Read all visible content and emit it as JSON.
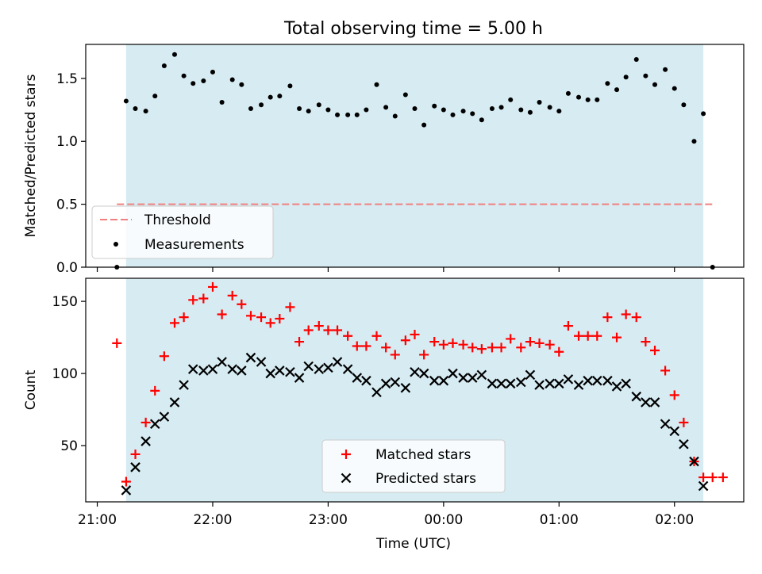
{
  "figure": {
    "title": "Total observing time = 5.00 h",
    "xlabel": "Time (UTC)"
  },
  "colors": {
    "shade": "#add8e6",
    "threshold": "#f08080",
    "measurement": "#000000",
    "matched": "#ff0000",
    "predicted": "#000000"
  },
  "chart_data": [
    {
      "type": "scatter",
      "name": "ratio-panel",
      "ylabel": "Matched/Predicted stars",
      "xlim": [
        -0.1,
        5.6
      ],
      "ylim": [
        0.0,
        1.77
      ],
      "yticks": [
        0.0,
        0.5,
        1.0,
        1.5
      ],
      "ytick_labels": [
        "0.0",
        "0.5",
        "1.0",
        "1.5"
      ],
      "shaded_span": [
        0.25,
        5.25
      ],
      "legend": {
        "placement": "lower-left",
        "entries": [
          "Threshold",
          "Measurements"
        ]
      },
      "threshold": {
        "name": "Threshold",
        "y": 0.5,
        "x": [
          0.17,
          5.33
        ]
      },
      "series": [
        {
          "name": "Measurements",
          "x": [
            0.17,
            0.25,
            0.33,
            0.42,
            0.5,
            0.58,
            0.67,
            0.75,
            0.83,
            0.92,
            1.0,
            1.08,
            1.17,
            1.25,
            1.33,
            1.42,
            1.5,
            1.58,
            1.67,
            1.75,
            1.83,
            1.92,
            2.0,
            2.08,
            2.17,
            2.25,
            2.33,
            2.42,
            2.5,
            2.58,
            2.67,
            2.75,
            2.83,
            2.92,
            3.0,
            3.08,
            3.17,
            3.25,
            3.33,
            3.42,
            3.5,
            3.58,
            3.67,
            3.75,
            3.83,
            3.92,
            4.0,
            4.08,
            4.17,
            4.25,
            4.33,
            4.42,
            4.5,
            4.58,
            4.67,
            4.75,
            4.83,
            4.92,
            5.0,
            5.08,
            5.17,
            5.25,
            5.33
          ],
          "y": [
            0.0,
            1.32,
            1.26,
            1.24,
            1.36,
            1.6,
            1.69,
            1.52,
            1.46,
            1.48,
            1.55,
            1.31,
            1.49,
            1.45,
            1.26,
            1.29,
            1.35,
            1.36,
            1.44,
            1.26,
            1.24,
            1.29,
            1.25,
            1.21,
            1.21,
            1.21,
            1.25,
            1.45,
            1.27,
            1.2,
            1.37,
            1.26,
            1.13,
            1.28,
            1.25,
            1.21,
            1.24,
            1.22,
            1.17,
            1.26,
            1.27,
            1.33,
            1.25,
            1.23,
            1.31,
            1.27,
            1.24,
            1.38,
            1.35,
            1.33,
            1.33,
            1.46,
            1.41,
            1.51,
            1.65,
            1.52,
            1.45,
            1.57,
            1.42,
            1.29,
            1.0,
            1.22,
            0.0
          ]
        }
      ]
    },
    {
      "type": "scatter",
      "name": "count-panel",
      "ylabel": "Count",
      "xlim": [
        -0.1,
        5.6
      ],
      "ylim": [
        11,
        166
      ],
      "yticks": [
        50,
        100,
        150
      ],
      "ytick_labels": [
        "50",
        "100",
        "150"
      ],
      "xticks": [
        0,
        1,
        2,
        3,
        4,
        5
      ],
      "xtick_labels": [
        "21:00",
        "22:00",
        "23:00",
        "00:00",
        "01:00",
        "02:00"
      ],
      "shaded_span": [
        0.25,
        5.25
      ],
      "legend": {
        "placement": "lower-center",
        "entries": [
          "Matched stars",
          "Predicted stars"
        ]
      },
      "series": [
        {
          "name": "Matched stars",
          "marker": "plus",
          "x": [
            0.17,
            0.25,
            0.33,
            0.42,
            0.5,
            0.58,
            0.67,
            0.75,
            0.83,
            0.92,
            1.0,
            1.08,
            1.17,
            1.25,
            1.33,
            1.42,
            1.5,
            1.58,
            1.67,
            1.75,
            1.83,
            1.92,
            2.0,
            2.08,
            2.17,
            2.25,
            2.33,
            2.42,
            2.5,
            2.58,
            2.67,
            2.75,
            2.83,
            2.92,
            3.0,
            3.08,
            3.17,
            3.25,
            3.33,
            3.42,
            3.5,
            3.58,
            3.67,
            3.75,
            3.83,
            3.92,
            4.0,
            4.08,
            4.17,
            4.25,
            4.33,
            4.42,
            4.5,
            4.58,
            4.67,
            4.75,
            4.83,
            4.92,
            5.0,
            5.08,
            5.17,
            5.25,
            5.33,
            5.42
          ],
          "y": [
            121,
            25,
            44,
            66,
            88,
            112,
            135,
            139,
            151,
            152,
            160,
            141,
            154,
            148,
            140,
            139,
            135,
            138,
            146,
            122,
            130,
            133,
            130,
            130,
            126,
            119,
            119,
            126,
            118,
            113,
            123,
            127,
            113,
            122,
            120,
            121,
            120,
            118,
            117,
            118,
            118,
            124,
            118,
            122,
            121,
            120,
            115,
            133,
            126,
            126,
            126,
            139,
            125,
            141,
            139,
            122,
            116,
            102,
            85,
            66,
            39,
            28,
            28,
            28
          ]
        },
        {
          "name": "Predicted stars",
          "marker": "x",
          "x": [
            0.25,
            0.33,
            0.42,
            0.5,
            0.58,
            0.67,
            0.75,
            0.83,
            0.92,
            1.0,
            1.08,
            1.17,
            1.25,
            1.33,
            1.42,
            1.5,
            1.58,
            1.67,
            1.75,
            1.83,
            1.92,
            2.0,
            2.08,
            2.17,
            2.25,
            2.33,
            2.42,
            2.5,
            2.58,
            2.67,
            2.75,
            2.83,
            2.92,
            3.0,
            3.08,
            3.17,
            3.25,
            3.33,
            3.42,
            3.5,
            3.58,
            3.67,
            3.75,
            3.83,
            3.92,
            4.0,
            4.08,
            4.17,
            4.25,
            4.33,
            4.42,
            4.5,
            4.58,
            4.67,
            4.75,
            4.83,
            4.92,
            5.0,
            5.08,
            5.17,
            5.25
          ],
          "y": [
            19,
            35,
            53,
            65,
            70,
            80,
            92,
            103,
            102,
            103,
            108,
            103,
            102,
            111,
            108,
            100,
            102,
            101,
            97,
            105,
            103,
            104,
            108,
            103,
            97,
            95,
            87,
            93,
            94,
            90,
            101,
            100,
            95,
            95,
            100,
            97,
            97,
            99,
            93,
            93,
            93,
            94,
            99,
            92,
            93,
            93,
            96,
            92,
            95,
            95,
            95,
            91,
            93,
            84,
            80,
            80,
            65,
            60,
            51,
            39,
            22
          ]
        }
      ]
    }
  ]
}
